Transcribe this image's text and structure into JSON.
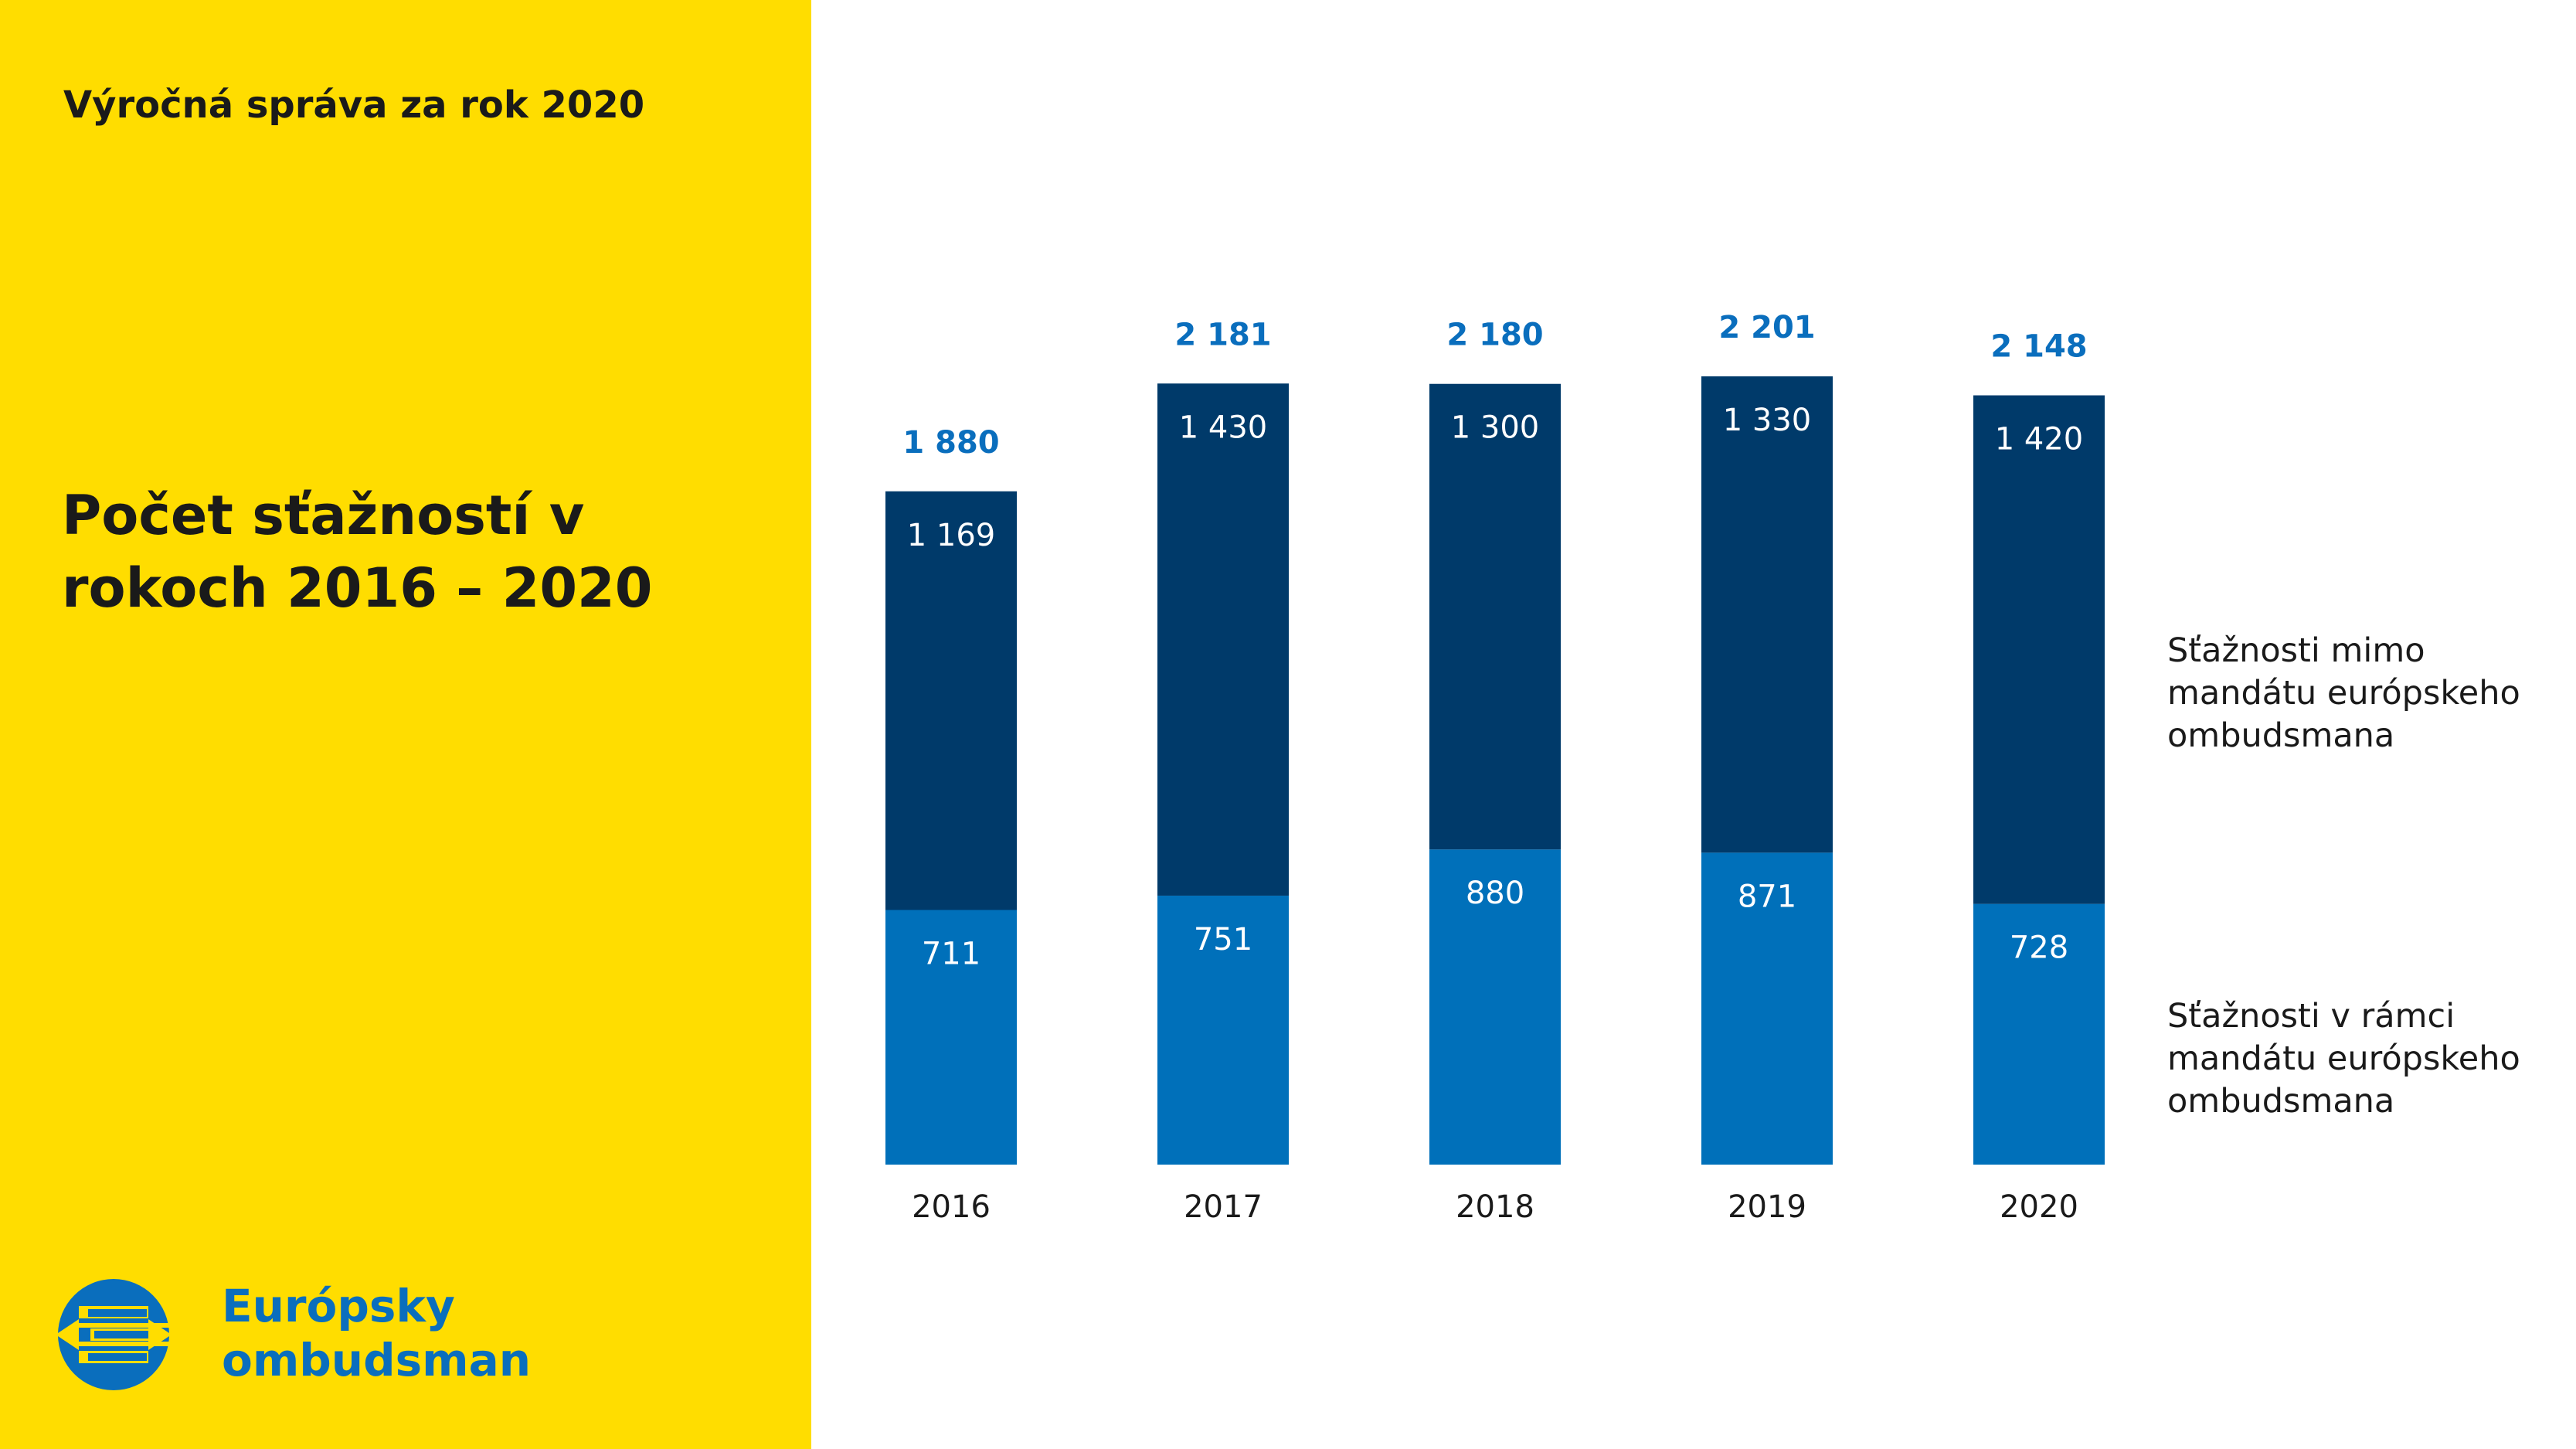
{
  "header": {
    "report_title": "Výročná správa za rok 2020",
    "chart_heading_line1": "Počet sťažností v",
    "chart_heading_line2": "rokoch 2016 – 2020"
  },
  "logo": {
    "icon": "european-ombudsman-logo-icon",
    "line1": "Európsky",
    "line2": "ombudsman"
  },
  "legend": {
    "outside_line1": "Sťažnosti mimo",
    "outside_line2": "mandátu európskeho",
    "outside_line3": "ombudsmana",
    "within_line1": "Sťažnosti v rámci",
    "within_line2": "mandátu európskeho",
    "within_line3": "ombudsmana"
  },
  "colors": {
    "background_panel": "#FFDD00",
    "outside_mandate": "#003A6A",
    "within_mandate": "#0070BA",
    "total_label": "#0A6EBD"
  },
  "chart_data": {
    "type": "bar",
    "stacked": true,
    "categories": [
      "2016",
      "2017",
      "2018",
      "2019",
      "2020"
    ],
    "series": [
      {
        "name": "Sťažnosti v rámci mandátu európskeho ombudsmana",
        "values": [
          711,
          751,
          880,
          871,
          728
        ],
        "labels": [
          "711",
          "751",
          "880",
          "871",
          "728"
        ]
      },
      {
        "name": "Sťažnosti mimo mandátu európskeho ombudsmana",
        "values": [
          1169,
          1430,
          1300,
          1330,
          1420
        ],
        "labels": [
          "1 169",
          "1 430",
          "1 300",
          "1 330",
          "1 420"
        ]
      }
    ],
    "totals": [
      1880,
      2181,
      2180,
      2201,
      2148
    ],
    "total_labels": [
      "1 880",
      "2 181",
      "2 180",
      "2 201",
      "2 148"
    ],
    "ylim": [
      0,
      2201
    ],
    "grid": false,
    "legend_position": "right"
  }
}
